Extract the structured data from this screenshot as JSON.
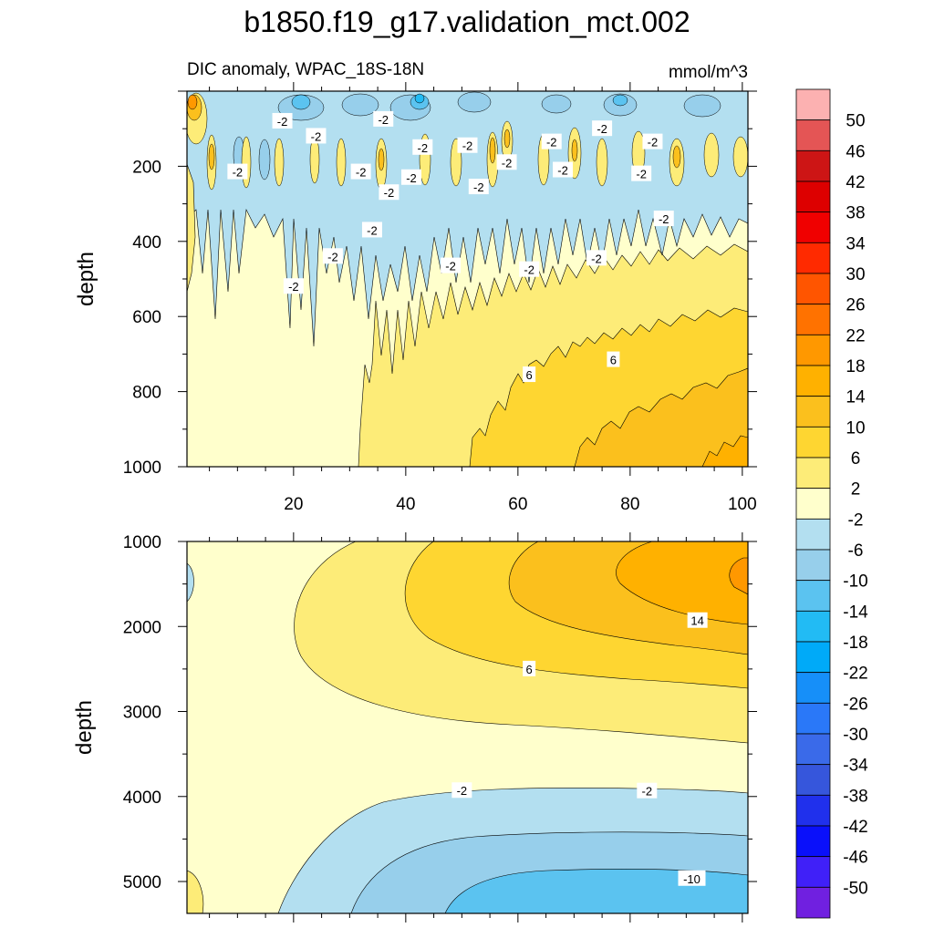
{
  "chart_data": {
    "type": "contour",
    "title": "b1850.f19_g17.validation_mct.002",
    "subtitle_left": "DIC anomaly, WPAC_18S-18N",
    "units": "mmol/m^3",
    "panels": [
      {
        "name": "upper",
        "xlim": [
          1,
          101
        ],
        "ylim": [
          0,
          1000
        ],
        "xticks": [
          20,
          40,
          60,
          80,
          100
        ],
        "yticks": [
          200,
          400,
          600,
          800,
          1000
        ],
        "ylabel": "depth",
        "contour_labels": [
          {
            "text": "-2",
            "x": 18,
            "y": 80
          },
          {
            "text": "-2",
            "x": 24,
            "y": 120
          },
          {
            "text": "-2",
            "x": 36,
            "y": 75
          },
          {
            "text": "-2",
            "x": 43,
            "y": 150
          },
          {
            "text": "-2",
            "x": 51,
            "y": 145
          },
          {
            "text": "-2",
            "x": 58,
            "y": 190
          },
          {
            "text": "-2",
            "x": 66,
            "y": 135
          },
          {
            "text": "-2",
            "x": 75,
            "y": 100
          },
          {
            "text": "-2",
            "x": 84,
            "y": 135
          },
          {
            "text": "-2",
            "x": 10,
            "y": 215
          },
          {
            "text": "-2",
            "x": 32,
            "y": 215
          },
          {
            "text": "-2",
            "x": 37,
            "y": 270
          },
          {
            "text": "-2",
            "x": 41,
            "y": 230
          },
          {
            "text": "-2",
            "x": 53,
            "y": 255
          },
          {
            "text": "-2",
            "x": 68,
            "y": 210
          },
          {
            "text": "-2",
            "x": 82,
            "y": 220
          },
          {
            "text": "-2",
            "x": 86,
            "y": 340
          },
          {
            "text": "-2",
            "x": 34,
            "y": 370
          },
          {
            "text": "-2",
            "x": 27,
            "y": 440
          },
          {
            "text": "-2",
            "x": 48,
            "y": 465
          },
          {
            "text": "-2",
            "x": 62,
            "y": 475
          },
          {
            "text": "-2",
            "x": 74,
            "y": 445
          },
          {
            "text": "-2",
            "x": 20,
            "y": 520
          },
          {
            "text": "6",
            "x": 62,
            "y": 755
          },
          {
            "text": "6",
            "x": 77,
            "y": 715
          }
        ]
      },
      {
        "name": "lower",
        "xlim": [
          1,
          101
        ],
        "ylim": [
          1000,
          5375
        ],
        "yticks": [
          1000,
          2000,
          3000,
          4000,
          5000
        ],
        "ylabel": "depth",
        "contour_labels": [
          {
            "text": "14",
            "x": 92,
            "y": 1930
          },
          {
            "text": "6",
            "x": 62,
            "y": 2500
          },
          {
            "text": "-2",
            "x": 50,
            "y": 3930
          },
          {
            "text": "-2",
            "x": 83,
            "y": 3935
          },
          {
            "text": "-10",
            "x": 91,
            "y": 4965
          }
        ]
      }
    ],
    "colorbar": {
      "labels": [
        "50",
        "46",
        "42",
        "38",
        "34",
        "30",
        "26",
        "22",
        "18",
        "14",
        "10",
        "6",
        "2",
        "-2",
        "-6",
        "-10",
        "-14",
        "-18",
        "-22",
        "-26",
        "-30",
        "-34",
        "-38",
        "-42",
        "-46",
        "-50"
      ],
      "colors": [
        "#fcb1b1",
        "#e45555",
        "#cd1515",
        "#dd0000",
        "#f00000",
        "#ff2a00",
        "#ff5500",
        "#ff7200",
        "#ff9800",
        "#ffb100",
        "#fbc01d",
        "#fed631",
        "#fdec78",
        "#ffffcc",
        "#b3dff0",
        "#97cfeb",
        "#5bc3f0",
        "#22bbf4",
        "#00aaf8",
        "#168ff9",
        "#2a78f8",
        "#3a6ae9",
        "#3656dc",
        "#2030ec",
        "#0a10fa",
        "#4020f8",
        "#7020e0"
      ]
    }
  }
}
